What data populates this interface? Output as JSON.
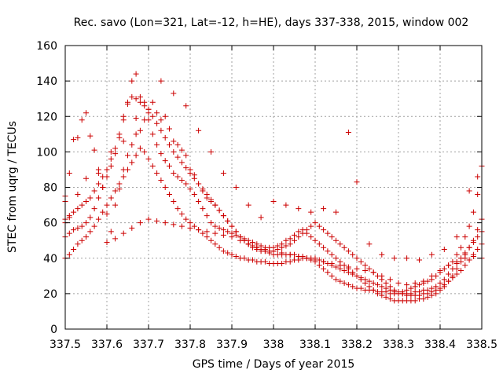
{
  "chart_data": {
    "type": "scatter",
    "title": "Rec. savo (Lon=321, Lat=-12, h=HE), days 337-338, 2015, window 002",
    "xlabel": "GPS time / Days of year 2015",
    "ylabel": "STEC from uqrg / TECUs",
    "xlim": [
      337.5,
      338.5
    ],
    "ylim": [
      0,
      160
    ],
    "x_ticks": [
      337.5,
      337.6,
      337.7,
      337.8,
      337.9,
      338.0,
      338.1,
      338.2,
      338.3,
      338.4,
      338.5
    ],
    "x_tick_labels": [
      "337.5",
      "337.6",
      "337.7",
      "337.8",
      "337.9",
      "338",
      "338.1",
      "338.2",
      "338.3",
      "338.4",
      "338.5"
    ],
    "y_ticks": [
      0,
      20,
      40,
      60,
      80,
      100,
      120,
      140,
      160
    ],
    "y_tick_labels": [
      "0",
      "20",
      "40",
      "60",
      "80",
      "100",
      "120",
      "140",
      "160"
    ],
    "grid": true,
    "marker": "+",
    "marker_color": "#cc0000",
    "series": [
      {
        "x": [
          337.5,
          337.5,
          337.5,
          337.51,
          337.52,
          337.53,
          337.54,
          337.55,
          337.56,
          337.57,
          337.58,
          337.59,
          337.6,
          337.61,
          337.62,
          337.63,
          337.64,
          337.65,
          337.66,
          337.67,
          337.68,
          337.69,
          337.7,
          337.71,
          337.72,
          337.73,
          337.74,
          337.75,
          337.76,
          337.77,
          337.78,
          337.79,
          337.8,
          337.81,
          337.82,
          337.83,
          337.84,
          337.85,
          337.86,
          337.87,
          337.88,
          337.89,
          337.9,
          337.91,
          337.92,
          337.93,
          337.94,
          337.95,
          337.96,
          337.97,
          337.98,
          337.99,
          338.0,
          338.01,
          338.02,
          338.03,
          338.04,
          338.05,
          338.06,
          338.07,
          338.08,
          338.09,
          338.1,
          338.11,
          338.12,
          338.13,
          338.14,
          338.15,
          338.16,
          338.17,
          338.18,
          338.19,
          338.2,
          338.21,
          338.22,
          338.23,
          338.24,
          338.25,
          338.26,
          338.27,
          338.28,
          338.29,
          338.3,
          338.31,
          338.32,
          338.33,
          338.34,
          338.35,
          338.36,
          338.37,
          338.38,
          338.39,
          338.4,
          338.41,
          338.42,
          338.43,
          338.44,
          338.45,
          338.46,
          338.47,
          338.48,
          338.49,
          338.5,
          338.5
        ],
        "y": [
          75,
          72,
          60,
          88,
          107,
          108,
          118,
          122,
          109,
          101,
          88,
          80,
          65,
          55,
          70,
          79,
          90,
          98,
          104,
          110,
          112,
          118,
          124,
          128,
          122,
          118,
          120,
          113,
          106,
          104,
          101,
          98,
          90,
          87,
          82,
          78,
          74,
          72,
          70,
          67,
          64,
          61,
          58,
          55,
          52,
          50,
          48,
          47,
          46,
          45,
          44,
          43,
          42,
          42,
          42,
          42,
          42,
          42,
          41,
          41,
          40,
          39,
          38,
          36,
          34,
          32,
          30,
          28,
          27,
          26,
          25,
          24,
          23,
          23,
          22,
          22,
          22,
          21,
          21,
          21,
          20,
          20,
          20,
          20,
          20,
          20,
          21,
          21,
          22,
          22,
          23,
          24,
          26,
          28,
          31,
          34,
          37,
          40,
          43,
          46,
          49,
          52,
          55,
          40
        ]
      },
      {
        "x": [
          337.5,
          337.51,
          337.52,
          337.53,
          337.54,
          337.55,
          337.56,
          337.57,
          337.58,
          337.59,
          337.6,
          337.61,
          337.62,
          337.63,
          337.64,
          337.65,
          337.66,
          337.67,
          337.68,
          337.69,
          337.7,
          337.71,
          337.72,
          337.73,
          337.74,
          337.75,
          337.76,
          337.77,
          337.78,
          337.79,
          337.8,
          337.81,
          337.82,
          337.83,
          337.84,
          337.85,
          337.86,
          337.87,
          337.88,
          337.89,
          337.9,
          337.91,
          337.92,
          337.93,
          337.94,
          337.95,
          337.96,
          337.97,
          337.98,
          337.99,
          338.0,
          338.01,
          338.02,
          338.03,
          338.04,
          338.05,
          338.06,
          338.07,
          338.08,
          338.09,
          338.1,
          338.11,
          338.12,
          338.13,
          338.14,
          338.15,
          338.16,
          338.17,
          338.18,
          338.19,
          338.2,
          338.21,
          338.22,
          338.23,
          338.24,
          338.25,
          338.26,
          338.27,
          338.28,
          338.29,
          338.3,
          338.31,
          338.32,
          338.33,
          338.34,
          338.35,
          338.36,
          338.37,
          338.38,
          338.39,
          338.4,
          338.41,
          338.42,
          338.43,
          338.44,
          338.45,
          338.46,
          338.47,
          338.48,
          338.49,
          338.5
        ],
        "y": [
          52,
          54,
          56,
          57,
          58,
          60,
          63,
          68,
          74,
          80,
          86,
          92,
          99,
          108,
          118,
          128,
          140,
          144,
          131,
          128,
          118,
          110,
          104,
          99,
          95,
          92,
          88,
          86,
          84,
          82,
          79,
          76,
          72,
          68,
          64,
          60,
          58,
          57,
          56,
          55,
          54,
          53,
          52,
          51,
          50,
          49,
          48,
          47,
          46,
          46,
          46,
          47,
          48,
          50,
          51,
          53,
          55,
          56,
          54,
          52,
          50,
          48,
          46,
          44,
          42,
          40,
          38,
          36,
          34,
          32,
          30,
          28,
          26,
          24,
          22,
          20,
          19,
          18,
          17,
          16,
          16,
          16,
          16,
          16,
          16,
          17,
          17,
          18,
          19,
          20,
          22,
          24,
          27,
          30,
          34,
          38,
          42,
          46,
          50,
          56,
          62
        ]
      },
      {
        "x": [
          337.5,
          337.51,
          337.52,
          337.53,
          337.54,
          337.55,
          337.56,
          337.57,
          337.58,
          337.59,
          337.6,
          337.61,
          337.62,
          337.63,
          337.64,
          337.65,
          337.66,
          337.67,
          337.68,
          337.69,
          337.7,
          337.71,
          337.72,
          337.73,
          337.74,
          337.75,
          337.76,
          337.77,
          337.78,
          337.79,
          337.8,
          337.81,
          337.82,
          337.83,
          337.84,
          337.85,
          337.86,
          337.87,
          337.88,
          337.89,
          337.9,
          337.91,
          337.92,
          337.93,
          337.94,
          337.95,
          337.96,
          337.97,
          337.98,
          337.99,
          338.0,
          338.01,
          338.02,
          338.03,
          338.04,
          338.05,
          338.06,
          338.07,
          338.08,
          338.09,
          338.1,
          338.11,
          338.12,
          338.13,
          338.14,
          338.15,
          338.16,
          338.17,
          338.18,
          338.19,
          338.2,
          338.21,
          338.22,
          338.23,
          338.24,
          338.25,
          338.26,
          338.27,
          338.28,
          338.29,
          338.3,
          338.31,
          338.32,
          338.33,
          338.34,
          338.35,
          338.36,
          338.37,
          338.38,
          338.39,
          338.4,
          338.41,
          338.42,
          338.43,
          338.44,
          338.45,
          338.46,
          338.47,
          338.48,
          338.49,
          338.5
        ],
        "y": [
          40,
          42,
          45,
          48,
          50,
          52,
          55,
          58,
          62,
          66,
          70,
          74,
          78,
          82,
          86,
          90,
          94,
          98,
          102,
          100,
          96,
          92,
          88,
          84,
          80,
          76,
          72,
          68,
          65,
          62,
          60,
          58,
          56,
          54,
          52,
          50,
          48,
          46,
          44,
          43,
          42,
          41,
          40,
          40,
          39,
          39,
          38,
          38,
          38,
          37,
          37,
          37,
          37,
          38,
          38,
          39,
          39,
          40,
          40,
          40,
          40,
          39,
          38,
          37,
          36,
          35,
          34,
          33,
          32,
          31,
          30,
          29,
          28,
          27,
          26,
          25,
          24,
          23,
          22,
          21,
          20,
          20,
          19,
          19,
          19,
          19,
          20,
          20,
          21,
          22,
          23,
          25,
          27,
          29,
          31,
          33,
          36,
          39,
          42,
          45,
          48
        ]
      },
      {
        "x": [
          337.5,
          337.51,
          337.52,
          337.53,
          337.54,
          337.55,
          337.56,
          337.57,
          337.58,
          337.59,
          337.6,
          337.61,
          337.62,
          337.63,
          337.64,
          337.65,
          337.66,
          337.67,
          337.68,
          337.69,
          337.7,
          337.71,
          337.72,
          337.73,
          337.74,
          337.75,
          337.76,
          337.77,
          337.78,
          337.79,
          337.8,
          337.81,
          337.82,
          337.83,
          337.84,
          337.85,
          337.86,
          337.87,
          337.88,
          337.89,
          337.9,
          337.91,
          337.92,
          337.93,
          337.94,
          337.95,
          337.96,
          337.97,
          337.98,
          337.99,
          338.0,
          338.01,
          338.02,
          338.03,
          338.04,
          338.05,
          338.06,
          338.07,
          338.08,
          338.09,
          338.1,
          338.11,
          338.12,
          338.13,
          338.14,
          338.15,
          338.16,
          338.17,
          338.18,
          338.19,
          338.2,
          338.21,
          338.22,
          338.23,
          338.24,
          338.25,
          338.26,
          338.27,
          338.28,
          338.29,
          338.3,
          338.31,
          338.32,
          338.33,
          338.34,
          338.35,
          338.36,
          338.37,
          338.38,
          338.39,
          338.4,
          338.41,
          338.42,
          338.43,
          338.44,
          338.45,
          338.46,
          338.47,
          338.48,
          338.49,
          338.5
        ],
        "y": [
          62,
          64,
          66,
          68,
          70,
          72,
          74,
          78,
          82,
          86,
          90,
          96,
          102,
          110,
          120,
          127,
          131,
          130,
          128,
          126,
          124,
          120,
          116,
          112,
          108,
          104,
          100,
          97,
          94,
          91,
          88,
          85,
          82,
          79,
          76,
          73,
          70,
          67,
          64,
          61,
          58,
          55,
          52,
          50,
          48,
          46,
          45,
          44,
          44,
          44,
          44,
          45,
          46,
          47,
          48,
          50,
          52,
          54,
          56,
          58,
          60,
          58,
          56,
          54,
          52,
          50,
          48,
          46,
          44,
          42,
          40,
          38,
          36,
          34,
          32,
          30,
          28,
          26,
          24,
          22,
          21,
          21,
          22,
          23,
          24,
          25,
          26,
          27,
          28,
          30,
          32,
          34,
          36,
          38,
          42,
          46,
          52,
          58,
          66,
          76,
          92
        ]
      },
      {
        "x": [
          337.6,
          337.62,
          337.64,
          337.66,
          337.68,
          337.7,
          337.72,
          337.74,
          337.76,
          337.78,
          337.8,
          337.82,
          337.84,
          337.86,
          337.88,
          337.9,
          337.92,
          337.94,
          337.96,
          337.98,
          338.0,
          338.02,
          338.04,
          338.06,
          338.08,
          338.1,
          338.12,
          338.14,
          338.16,
          338.18,
          338.2,
          338.22,
          338.24,
          338.26,
          338.28,
          338.3,
          338.32,
          338.34,
          338.36,
          338.38,
          338.4,
          338.42,
          338.44,
          338.46,
          338.48
        ],
        "y": [
          49,
          51,
          54,
          57,
          60,
          62,
          61,
          60,
          59,
          58,
          57,
          56,
          55,
          54,
          53,
          52,
          50,
          48,
          46,
          45,
          44,
          43,
          42,
          41,
          40,
          39,
          38,
          37,
          36,
          35,
          34,
          33,
          32,
          30,
          28,
          26,
          25,
          26,
          27,
          30,
          33,
          36,
          38,
          40,
          41
        ]
      },
      {
        "x": [
          337.51,
          337.53,
          337.55,
          337.58,
          337.61,
          337.64,
          337.67,
          337.7,
          337.73,
          337.76,
          337.79,
          337.82,
          337.85,
          337.88,
          337.91,
          337.94,
          337.97,
          338.0,
          338.03,
          338.06,
          338.09,
          338.12,
          338.15,
          338.18,
          338.2,
          338.23,
          338.26,
          338.29,
          338.32,
          338.35,
          338.38,
          338.41,
          338.44,
          338.47,
          338.49
        ],
        "y": [
          63,
          76,
          85,
          90,
          100,
          106,
          119,
          122,
          140,
          133,
          126,
          112,
          100,
          88,
          80,
          70,
          63,
          72,
          70,
          68,
          66,
          68,
          66,
          111,
          83,
          48,
          42,
          40,
          40,
          39,
          42,
          45,
          52,
          78,
          86
        ]
      }
    ]
  }
}
